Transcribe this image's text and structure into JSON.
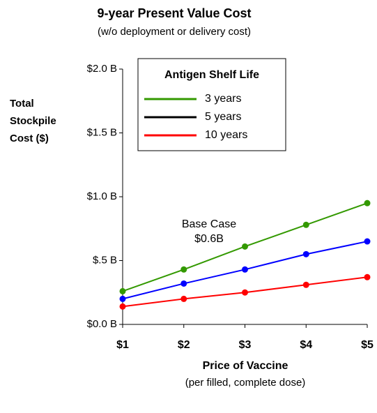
{
  "chart_data": {
    "type": "line",
    "title": "9-year Present Value Cost",
    "subtitle": "(w/o deployment or delivery cost)",
    "ylabel": [
      "Total",
      "Stockpile",
      "Cost ($)"
    ],
    "xlabel": "Price of Vaccine",
    "xlabel_note": "(per filled, complete dose)",
    "categories": [
      "$1",
      "$2",
      "$3",
      "$4",
      "$5"
    ],
    "legend_title": "Antigen Shelf Life",
    "series": [
      {
        "name": "3 years",
        "color": "#339900",
        "legend_color": "#339900",
        "values": [
          0.26,
          0.43,
          0.61,
          0.78,
          0.95
        ]
      },
      {
        "name": "5 years",
        "color": "#0000ff",
        "legend_color": "#000000",
        "values": [
          0.2,
          0.32,
          0.43,
          0.55,
          0.65
        ]
      },
      {
        "name": "10 years",
        "color": "#ff0000",
        "legend_color": "#ff0000",
        "values": [
          0.14,
          0.2,
          0.25,
          0.31,
          0.37
        ]
      }
    ],
    "annotation": [
      "Base Case",
      "$0.6B"
    ],
    "ylim": [
      0,
      2
    ],
    "yticks": [
      {
        "value": 0,
        "label": "$0.0 B"
      },
      {
        "value": 0.5,
        "label": "$.5 B"
      },
      {
        "value": 1,
        "label": "$1.0 B"
      },
      {
        "value": 1.5,
        "label": "$1.5 B"
      },
      {
        "value": 2,
        "label": "$2.0 B"
      }
    ],
    "grid": false
  }
}
